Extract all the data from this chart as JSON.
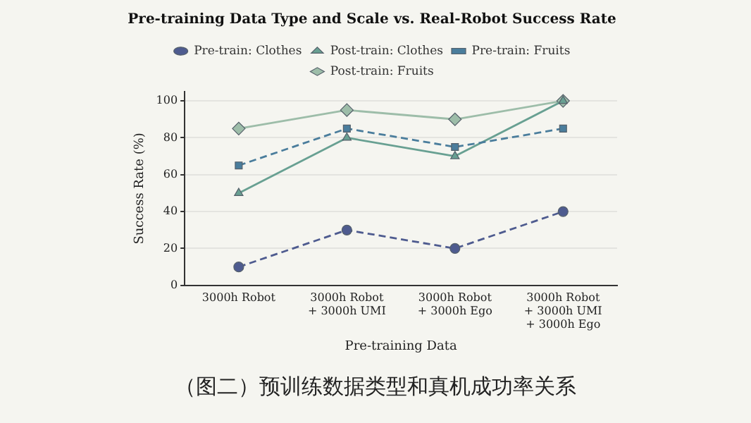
{
  "chart_data": {
    "type": "line",
    "title": "Pre-training Data Type and Scale vs. Real-Robot Success Rate",
    "xlabel": "Pre-training Data",
    "ylabel": "Success Rate (%)",
    "categories": [
      "3000h Robot",
      "3000h Robot\n+ 3000h UMI",
      "3000h Robot\n+ 3000h Ego",
      "3000h Robot\n+ 3000h UMI\n+ 3000h Ego"
    ],
    "series": [
      {
        "name": "Pre-train: Clothes",
        "color": "#4e5b8f",
        "values": [
          10,
          30,
          20,
          40
        ],
        "marker": "circle",
        "line_style": "dashed"
      },
      {
        "name": "Pre-train: Fruits",
        "color": "#4a7d9c",
        "values": [
          65,
          85,
          75,
          85
        ],
        "marker": "square",
        "line_style": "dashed"
      },
      {
        "name": "Post-train: Clothes",
        "color": "#68a092",
        "values": [
          50,
          80,
          70,
          100
        ],
        "marker": "triangle",
        "line_style": "solid"
      },
      {
        "name": "Post-train: Fruits",
        "color": "#9dbda9",
        "values": [
          85,
          95,
          90,
          100
        ],
        "marker": "diamond",
        "line_style": "solid"
      }
    ],
    "ylim": [
      0,
      105
    ],
    "yticks": [
      0,
      20,
      40,
      60,
      80,
      100
    ],
    "grid": "y",
    "legend": "top",
    "annotations": [
      "（图二）预训练数据类型和真机成功率关系"
    ]
  }
}
